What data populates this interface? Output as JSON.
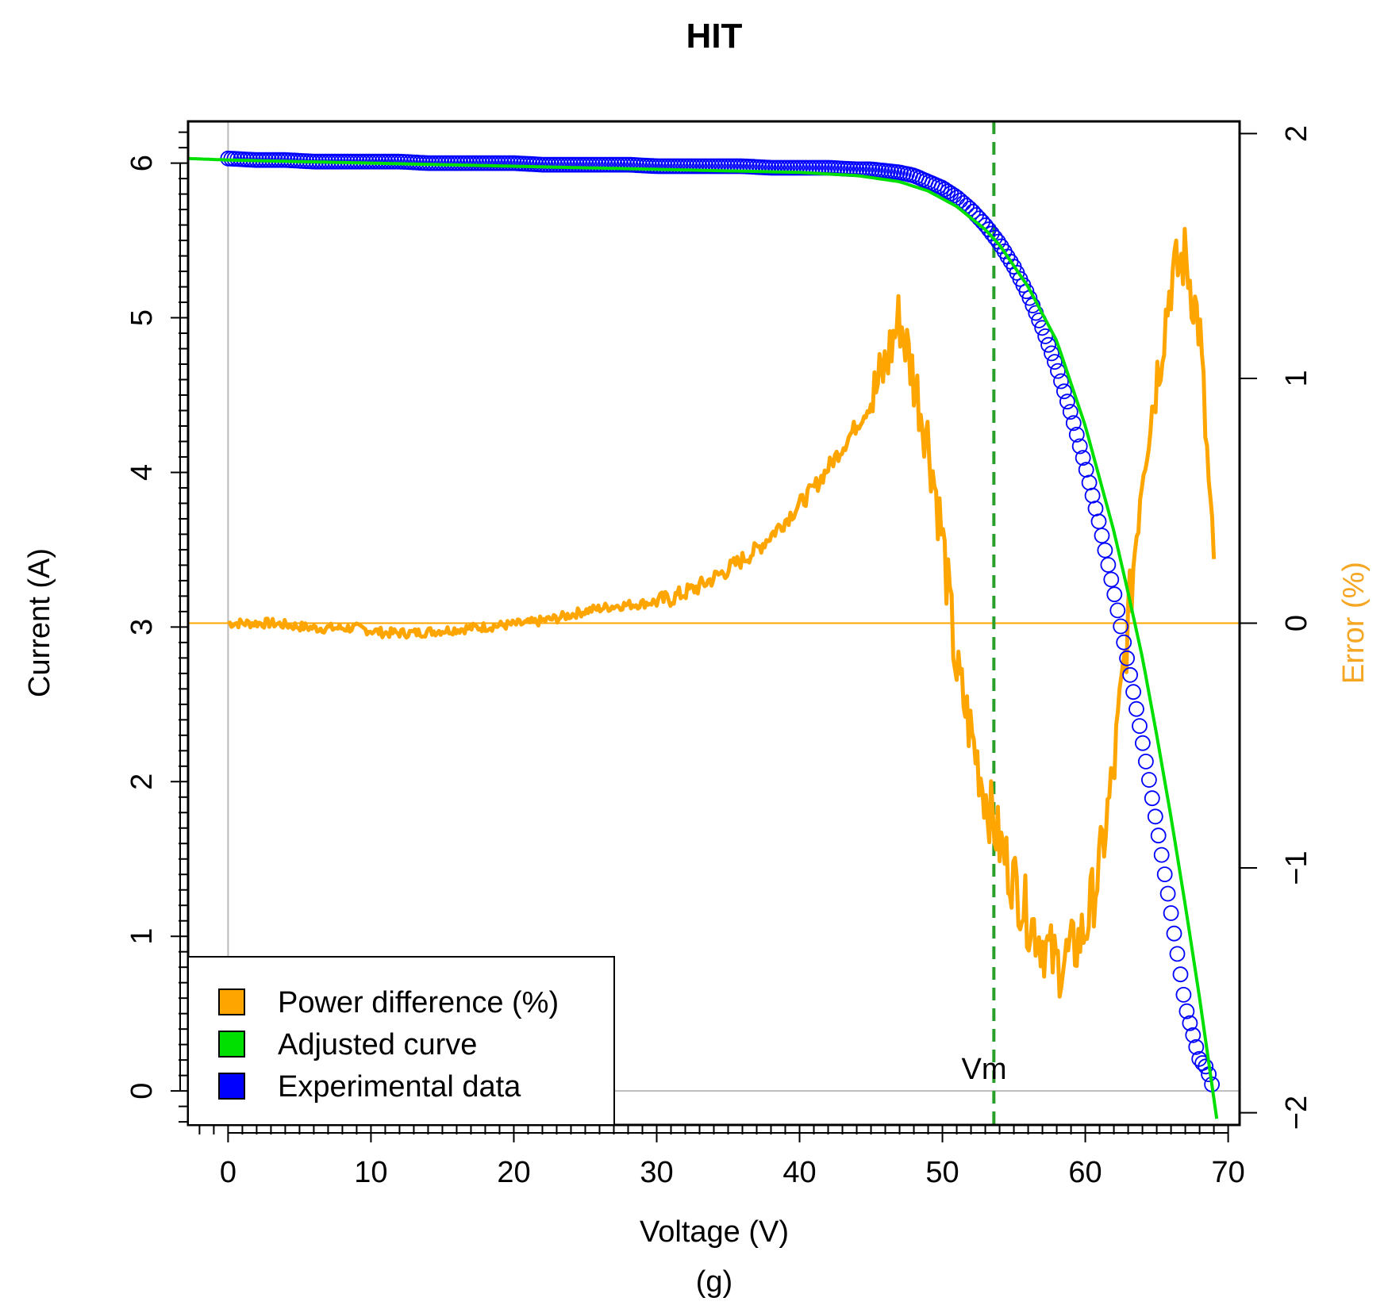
{
  "chart_data": {
    "type": "line",
    "title": "HIT",
    "xlabel": "Voltage (V)",
    "ylabel": "Current (A)",
    "y2label": "Error (%)",
    "caption": "(g)",
    "xlim": [
      -2.8,
      70.8
    ],
    "ylim": [
      -0.22,
      6.27
    ],
    "y2lim": [
      -2.05,
      2.05
    ],
    "xticks": [
      0,
      10,
      20,
      30,
      40,
      50,
      60,
      70
    ],
    "yticks": [
      0,
      1,
      2,
      3,
      4,
      5,
      6
    ],
    "y2ticks": [
      -2,
      -1,
      0,
      1,
      2
    ],
    "vline": {
      "x": 53.6,
      "label": "Vm",
      "color": "#2aa02a"
    },
    "hline_error_zero": 0,
    "colors": {
      "experimental": "#0000ff",
      "adjusted": "#00e000",
      "power": "#ffa500",
      "grid": "#bbbbbb"
    },
    "legend": {
      "position": "bottom-left",
      "entries": [
        {
          "label": "Power difference (%)",
          "color": "#ffa500"
        },
        {
          "label": "Adjusted curve",
          "color": "#00e000"
        },
        {
          "label": "Experimental data",
          "color": "#0000ff"
        }
      ]
    },
    "series": [
      {
        "name": "Experimental data",
        "kind": "points",
        "x": [
          0,
          2,
          4,
          6,
          8,
          10,
          12,
          14,
          16,
          18,
          20,
          22,
          24,
          26,
          28,
          30,
          32,
          34,
          36,
          38,
          40,
          42,
          44,
          45,
          46,
          47,
          48,
          49,
          50,
          51,
          52,
          53,
          54,
          55,
          56,
          57,
          58,
          59,
          60,
          61,
          62,
          63,
          64,
          65,
          66,
          67,
          68,
          68.5,
          69
        ],
        "y": [
          6.03,
          6.02,
          6.02,
          6.01,
          6.01,
          6.01,
          6.01,
          6.0,
          6.0,
          6.0,
          6.0,
          5.99,
          5.99,
          5.99,
          5.99,
          5.98,
          5.98,
          5.98,
          5.98,
          5.97,
          5.97,
          5.97,
          5.96,
          5.96,
          5.95,
          5.94,
          5.92,
          5.88,
          5.84,
          5.78,
          5.7,
          5.6,
          5.48,
          5.33,
          5.15,
          4.93,
          4.68,
          4.38,
          4.04,
          3.66,
          3.23,
          2.76,
          2.26,
          1.72,
          1.15,
          0.55,
          0.2,
          0.15,
          0.0
        ]
      },
      {
        "name": "Adjusted curve",
        "kind": "line",
        "x": [
          -2.8,
          0,
          10,
          20,
          30,
          40,
          44,
          47,
          49,
          51,
          53,
          54,
          56,
          58,
          60,
          62,
          63,
          64,
          65,
          66,
          67,
          68,
          69.2
        ],
        "y": [
          6.03,
          6.02,
          6.0,
          5.98,
          5.96,
          5.94,
          5.92,
          5.88,
          5.82,
          5.72,
          5.57,
          5.47,
          5.2,
          4.85,
          4.3,
          3.62,
          3.22,
          2.8,
          2.3,
          1.77,
          1.2,
          0.6,
          -0.18
        ]
      },
      {
        "name": "Power difference (%)",
        "kind": "line",
        "axis": "right",
        "x": [
          0,
          3,
          6,
          9,
          11,
          13,
          15,
          17,
          19,
          21,
          23,
          25,
          27,
          29,
          31,
          33,
          35,
          37,
          39,
          41,
          43,
          45,
          46,
          47,
          48,
          49,
          50,
          51,
          52,
          53,
          54,
          55,
          56,
          57,
          58,
          59,
          60,
          61,
          62,
          63,
          64,
          65,
          66,
          67,
          68,
          69
        ],
        "y": [
          0.0,
          0.0,
          -0.02,
          -0.02,
          -0.04,
          -0.04,
          -0.03,
          -0.02,
          -0.01,
          0.0,
          0.02,
          0.05,
          0.07,
          0.08,
          0.1,
          0.15,
          0.22,
          0.3,
          0.42,
          0.55,
          0.72,
          0.9,
          1.05,
          1.25,
          1.0,
          0.75,
          0.35,
          -0.2,
          -0.45,
          -0.7,
          -0.9,
          -1.05,
          -1.2,
          -1.3,
          -1.4,
          -1.35,
          -1.25,
          -1.0,
          -0.6,
          0.0,
          0.65,
          1.0,
          1.4,
          1.5,
          1.2,
          0.2
        ]
      }
    ]
  }
}
